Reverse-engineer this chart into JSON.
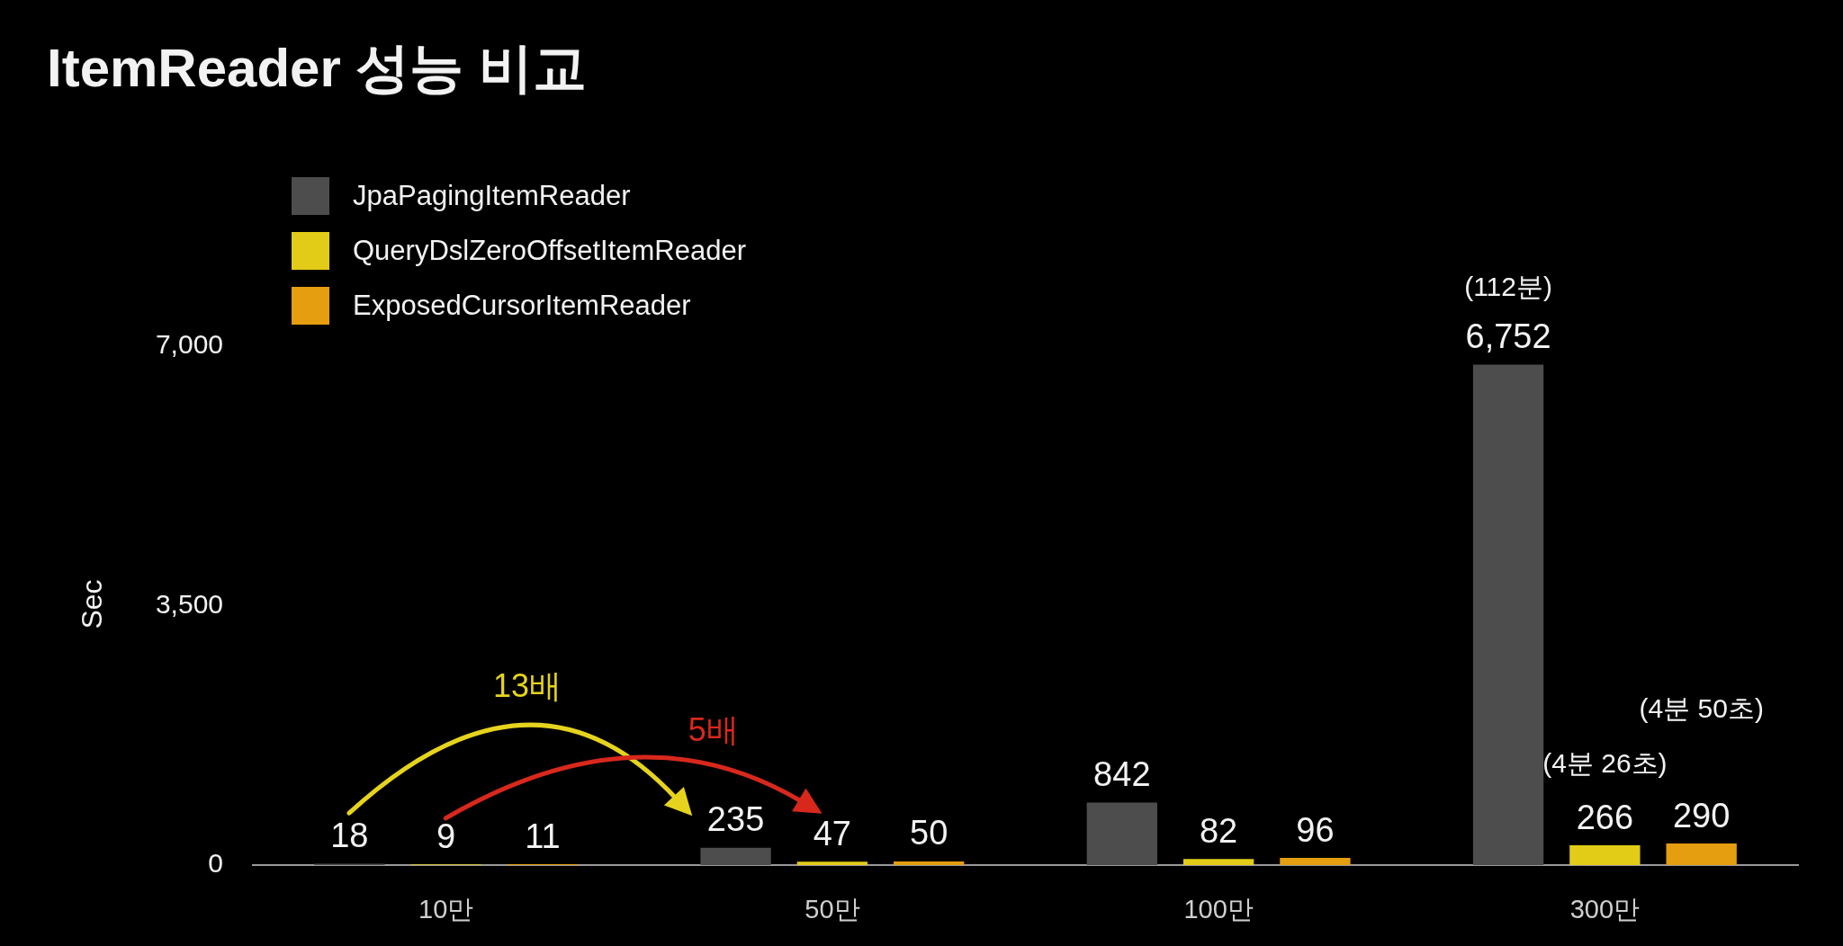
{
  "chart_data": {
    "type": "bar",
    "title": "ItemReader 성능 비교",
    "ylabel": "Sec",
    "categories": [
      "10만",
      "50만",
      "100만",
      "300만"
    ],
    "series": [
      {
        "name": "JpaPagingItemReader",
        "color": "#4d4d4d",
        "values": [
          18,
          235,
          842,
          6752
        ],
        "value_labels": [
          "18",
          "235",
          "842",
          "6,752"
        ]
      },
      {
        "name": "QueryDslZeroOffsetItemReader",
        "color": "#e2cc17",
        "values": [
          9,
          47,
          82,
          266
        ],
        "value_labels": [
          "9",
          "47",
          "82",
          "266"
        ]
      },
      {
        "name": "ExposedCursorItemReader",
        "color": "#e59e10",
        "values": [
          11,
          50,
          96,
          290
        ],
        "value_labels": [
          "11",
          "50",
          "96",
          "290"
        ]
      }
    ],
    "ylim": [
      0,
      7000
    ],
    "yticks": [
      0,
      {
        "value": 3500,
        "label": "3,500"
      },
      {
        "value": 7000,
        "label": "7,000"
      }
    ],
    "grid": false,
    "legend": "top left",
    "annotations": [
      "13배",
      "5배",
      "(112분)",
      "(4분 26초)",
      "(4분 50초)"
    ]
  }
}
